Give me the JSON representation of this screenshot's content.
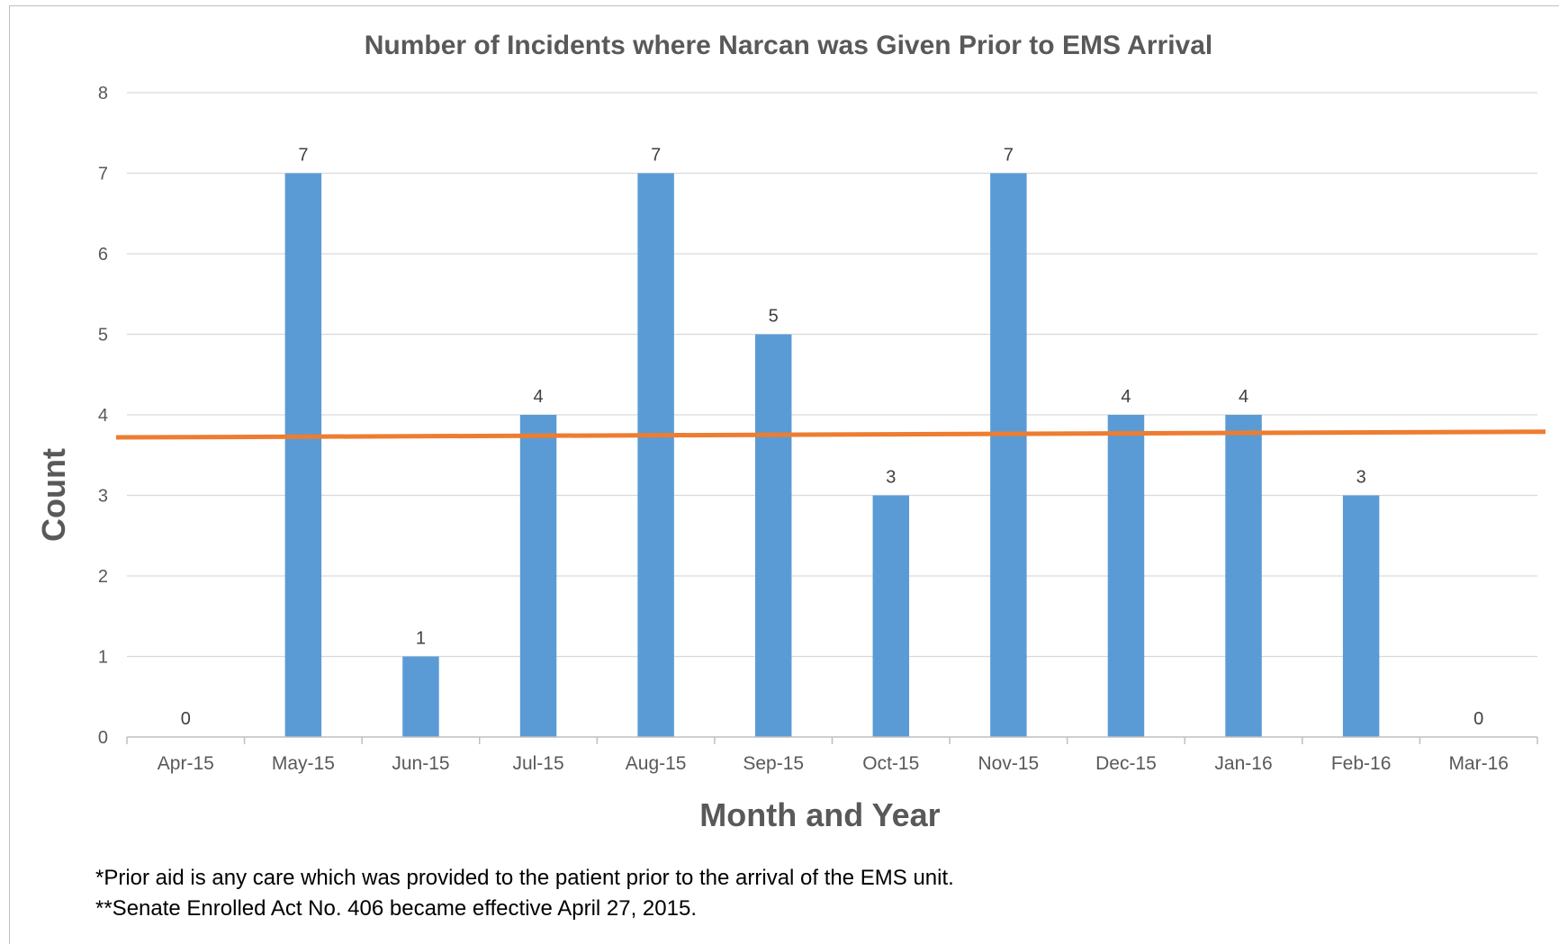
{
  "chart_data": {
    "type": "bar",
    "title": "Number of Incidents where Narcan was Given Prior to EMS Arrival",
    "xlabel": "Month and Year",
    "ylabel": "Count",
    "categories": [
      "Apr-15",
      "May-15",
      "Jun-15",
      "Jul-15",
      "Aug-15",
      "Sep-15",
      "Oct-15",
      "Nov-15",
      "Dec-15",
      "Jan-16",
      "Feb-16",
      "Mar-16"
    ],
    "values": [
      0,
      7,
      1,
      4,
      7,
      5,
      3,
      7,
      4,
      4,
      3,
      0
    ],
    "ylim": [
      0,
      8
    ],
    "yticks": [
      0,
      1,
      2,
      3,
      4,
      5,
      6,
      7,
      8
    ],
    "grid": true,
    "legend": "none",
    "data_labels": true,
    "trendline": {
      "type": "linear",
      "start": 3.72,
      "end": 3.79
    },
    "colors": {
      "bar": "#5b9bd5",
      "trendline": "#ed7d31",
      "grid": "#d9d9d9"
    }
  },
  "footnotes": [
    "*Prior aid is any care which was provided to the patient prior to the arrival of the EMS unit.",
    "**Senate Enrolled Act No. 406 became effective April 27, 2015."
  ]
}
